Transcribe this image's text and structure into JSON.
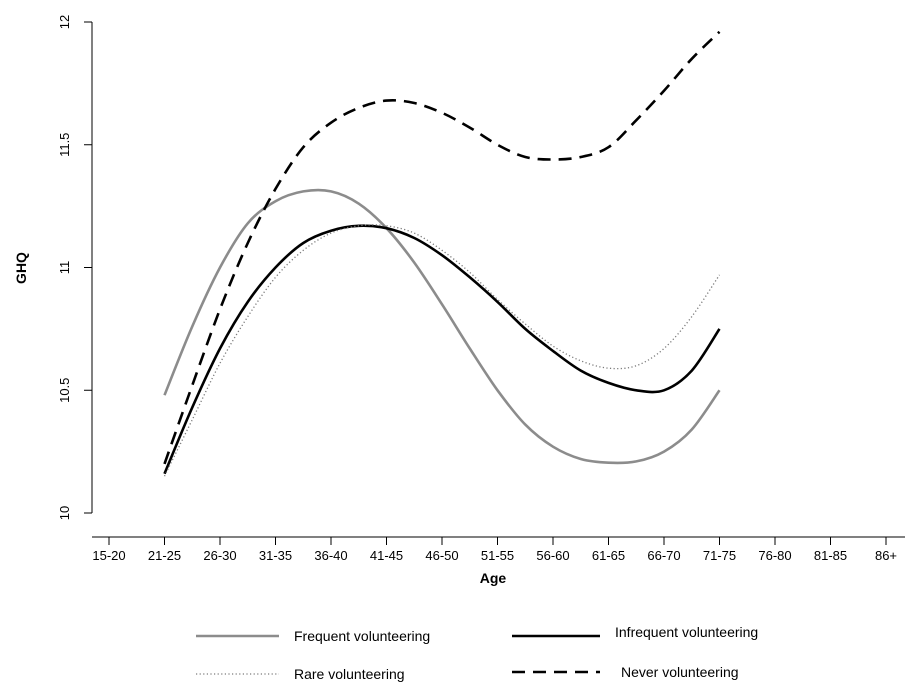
{
  "chart_data": {
    "type": "line",
    "xlabel": "Age",
    "ylabel": "GHQ",
    "categories": [
      "15-20",
      "21-25",
      "26-30",
      "31-35",
      "36-40",
      "41-45",
      "46-50",
      "51-55",
      "56-60",
      "61-65",
      "66-70",
      "71-75",
      "76-80",
      "81-85",
      "86+"
    ],
    "ylim": [
      10,
      12
    ],
    "yticks": [
      "10",
      "10.5",
      "11",
      "11.5",
      "12"
    ],
    "grid": false,
    "legend_position": "bottom",
    "series": [
      {
        "name": "Frequent volunteering",
        "style": "solid",
        "color": "#8c8c8c",
        "points": [
          [
            1,
            10.48
          ],
          [
            1.5,
            10.76
          ],
          [
            2,
            11.0
          ],
          [
            2.5,
            11.18
          ],
          [
            3,
            11.27
          ],
          [
            3.5,
            11.31
          ],
          [
            4,
            11.31
          ],
          [
            4.5,
            11.26
          ],
          [
            5,
            11.16
          ],
          [
            5.5,
            11.02
          ],
          [
            6,
            10.85
          ],
          [
            6.5,
            10.67
          ],
          [
            7,
            10.5
          ],
          [
            7.5,
            10.36
          ],
          [
            8,
            10.27
          ],
          [
            8.5,
            10.22
          ],
          [
            9,
            10.205
          ],
          [
            9.5,
            10.21
          ],
          [
            10,
            10.25
          ],
          [
            10.5,
            10.34
          ],
          [
            11,
            10.5
          ]
        ]
      },
      {
        "name": "Infrequent volunteering",
        "style": "solid",
        "color": "#000000",
        "points": [
          [
            1,
            10.16
          ],
          [
            1.5,
            10.43
          ],
          [
            2,
            10.67
          ],
          [
            2.5,
            10.86
          ],
          [
            3,
            11.0
          ],
          [
            3.5,
            11.1
          ],
          [
            4,
            11.15
          ],
          [
            4.5,
            11.17
          ],
          [
            5,
            11.16
          ],
          [
            5.5,
            11.12
          ],
          [
            6,
            11.05
          ],
          [
            6.5,
            10.96
          ],
          [
            7,
            10.86
          ],
          [
            7.5,
            10.75
          ],
          [
            8,
            10.66
          ],
          [
            8.5,
            10.58
          ],
          [
            9,
            10.53
          ],
          [
            9.5,
            10.5
          ],
          [
            10,
            10.5
          ],
          [
            10.5,
            10.58
          ],
          [
            11,
            10.75
          ]
        ]
      },
      {
        "name": "Rare volunteering",
        "style": "dotted",
        "color": "#7a7a7a",
        "points": [
          [
            1,
            10.15
          ],
          [
            1.5,
            10.38
          ],
          [
            2,
            10.61
          ],
          [
            2.5,
            10.8
          ],
          [
            3,
            10.96
          ],
          [
            3.5,
            11.07
          ],
          [
            4,
            11.14
          ],
          [
            4.5,
            11.17
          ],
          [
            5,
            11.17
          ],
          [
            5.5,
            11.14
          ],
          [
            6,
            11.07
          ],
          [
            6.5,
            10.98
          ],
          [
            7,
            10.87
          ],
          [
            7.5,
            10.77
          ],
          [
            8,
            10.68
          ],
          [
            8.5,
            10.62
          ],
          [
            9,
            10.59
          ],
          [
            9.5,
            10.6
          ],
          [
            10,
            10.67
          ],
          [
            10.5,
            10.8
          ],
          [
            11,
            10.97
          ]
        ]
      },
      {
        "name": "Never volunteering",
        "style": "dashed",
        "color": "#000000",
        "points": [
          [
            1,
            10.2
          ],
          [
            1.5,
            10.52
          ],
          [
            2,
            10.83
          ],
          [
            2.5,
            11.1
          ],
          [
            3,
            11.32
          ],
          [
            3.5,
            11.49
          ],
          [
            4,
            11.59
          ],
          [
            4.5,
            11.65
          ],
          [
            5,
            11.68
          ],
          [
            5.5,
            11.67
          ],
          [
            6,
            11.63
          ],
          [
            6.5,
            11.57
          ],
          [
            7,
            11.5
          ],
          [
            7.5,
            11.45
          ],
          [
            8,
            11.44
          ],
          [
            8.5,
            11.45
          ],
          [
            9,
            11.49
          ],
          [
            9.5,
            11.6
          ],
          [
            10,
            11.72
          ],
          [
            10.5,
            11.85
          ],
          [
            11,
            11.96
          ]
        ]
      }
    ]
  }
}
